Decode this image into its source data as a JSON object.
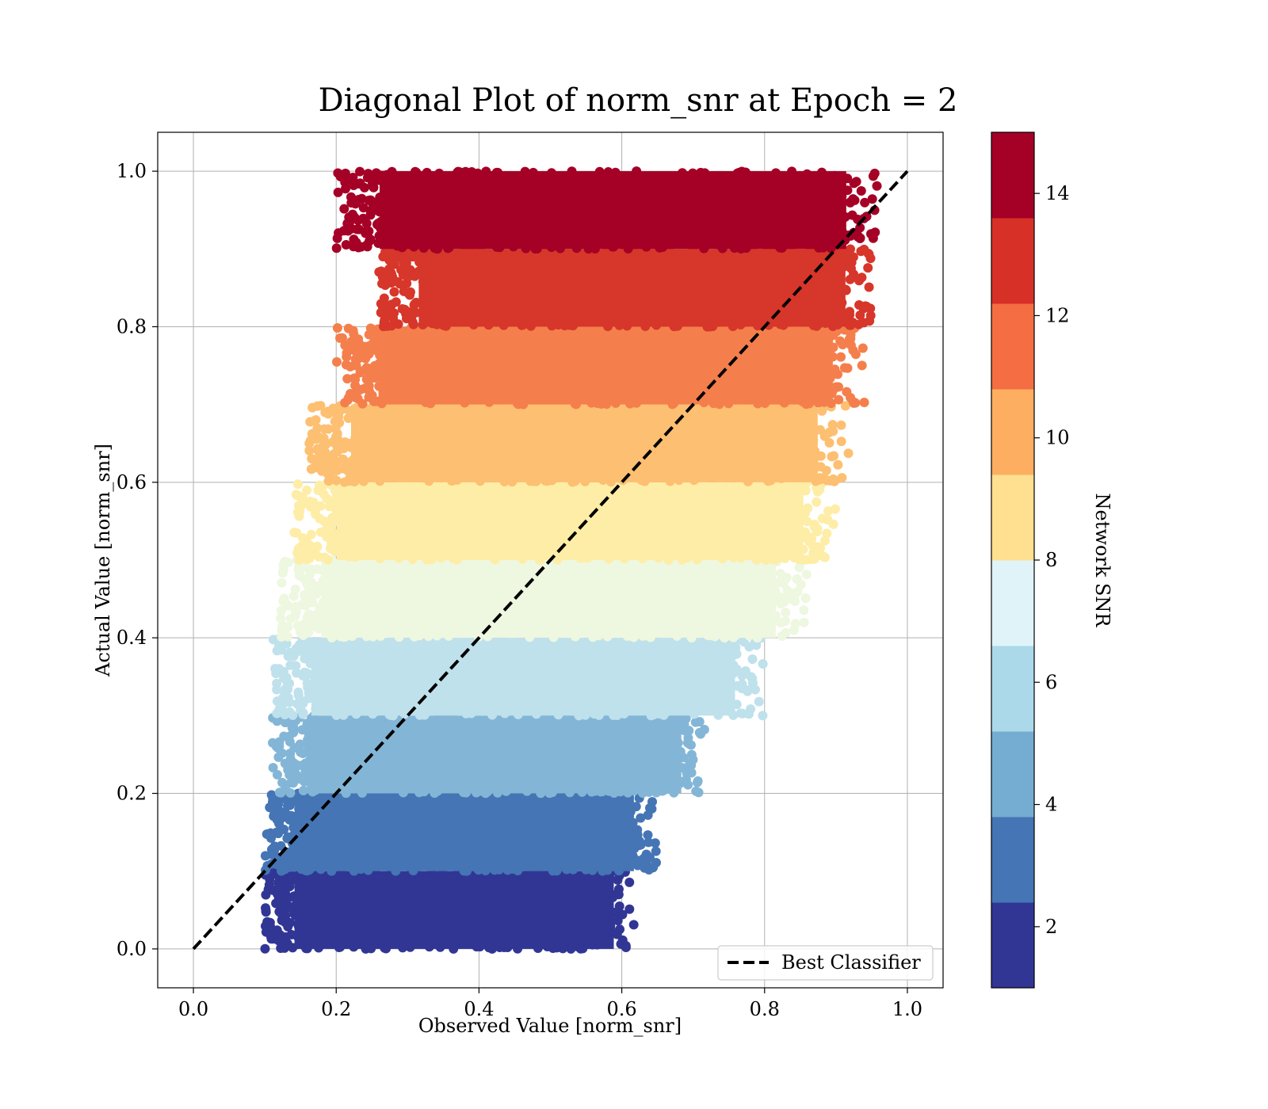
{
  "chart_data": {
    "type": "scatter",
    "title": "Diagonal Plot of norm_snr at Epoch = 2",
    "xlabel": "Observed Value [norm_snr]",
    "ylabel": "Actual Value [norm_snr]",
    "xlim": [
      -0.05,
      1.05
    ],
    "ylim": [
      -0.05,
      1.05
    ],
    "x_ticks": [
      "0.0",
      "0.2",
      "0.4",
      "0.6",
      "0.8",
      "1.0"
    ],
    "y_ticks": [
      "0.0",
      "0.2",
      "0.4",
      "0.6",
      "0.8",
      "1.0"
    ],
    "grid": true,
    "legend": {
      "position": "lower-right",
      "entries": [
        "Best Classifier"
      ]
    },
    "reference_line": {
      "label": "Best Classifier",
      "x": [
        0,
        1
      ],
      "y": [
        0,
        1
      ],
      "style": "dashed",
      "color": "#000000"
    },
    "colorbar": {
      "label": "Network SNR",
      "range": [
        1,
        15
      ],
      "ticks": [
        "2",
        "4",
        "6",
        "8",
        "10",
        "12",
        "14"
      ],
      "colors": [
        "#313695",
        "#4575b4",
        "#74add1",
        "#abd9e9",
        "#e0f3f8",
        "#fee090",
        "#fdae61",
        "#f46d43",
        "#d73027",
        "#a50026"
      ]
    },
    "bands": [
      {
        "y_range": [
          0.0,
          0.1
        ],
        "x_range": [
          0.1,
          0.62
        ],
        "color": "#313695"
      },
      {
        "y_range": [
          0.1,
          0.2
        ],
        "x_range": [
          0.1,
          0.65
        ],
        "color": "#4575b4"
      },
      {
        "y_range": [
          0.2,
          0.3
        ],
        "x_range": [
          0.11,
          0.72
        ],
        "color": "#83b6d6"
      },
      {
        "y_range": [
          0.3,
          0.4
        ],
        "x_range": [
          0.11,
          0.8
        ],
        "color": "#bfe1ec"
      },
      {
        "y_range": [
          0.4,
          0.5
        ],
        "x_range": [
          0.12,
          0.86
        ],
        "color": "#eef7df"
      },
      {
        "y_range": [
          0.5,
          0.6
        ],
        "x_range": [
          0.14,
          0.9
        ],
        "color": "#feeda6"
      },
      {
        "y_range": [
          0.6,
          0.7
        ],
        "x_range": [
          0.16,
          0.92
        ],
        "color": "#fdbf71"
      },
      {
        "y_range": [
          0.7,
          0.8
        ],
        "x_range": [
          0.2,
          0.94
        ],
        "color": "#f47f4c"
      },
      {
        "y_range": [
          0.8,
          0.9
        ],
        "x_range": [
          0.26,
          0.955
        ],
        "color": "#d7362a"
      },
      {
        "y_range": [
          0.9,
          1.0
        ],
        "x_range": [
          0.2,
          0.96
        ],
        "color": "#a50026"
      }
    ]
  }
}
